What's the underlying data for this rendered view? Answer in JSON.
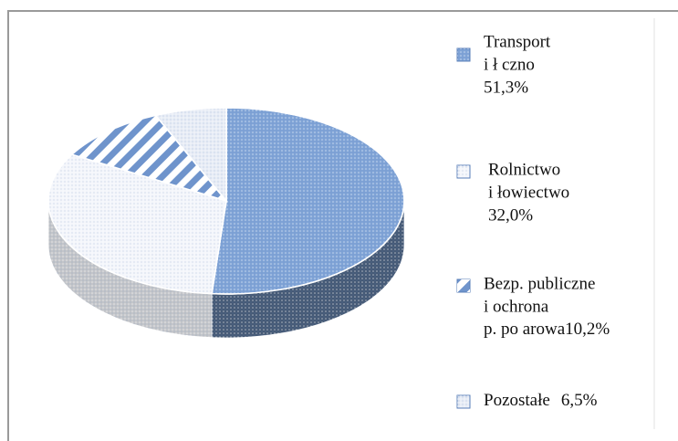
{
  "chart_data": {
    "type": "pie3d",
    "categories": [
      [
        "Transport",
        "i ł czno"
      ],
      [
        "Rolnictwo",
        "i łowiectwo"
      ],
      [
        "Bezp. publiczne",
        "i ochrona",
        "p. po arowa"
      ],
      [
        "Pozostałe"
      ]
    ],
    "values": [
      51.3,
      32.0,
      10.2,
      6.5
    ],
    "value_labels": [
      "51,3%",
      "32,0%",
      "10,2%",
      "6,5%"
    ],
    "colors": [
      "#7fa3d6",
      "#f4f6fb",
      "#6f94cc",
      "#e8edf6"
    ],
    "patterns": [
      "dots",
      "dots",
      "stripes",
      "dots"
    ]
  }
}
